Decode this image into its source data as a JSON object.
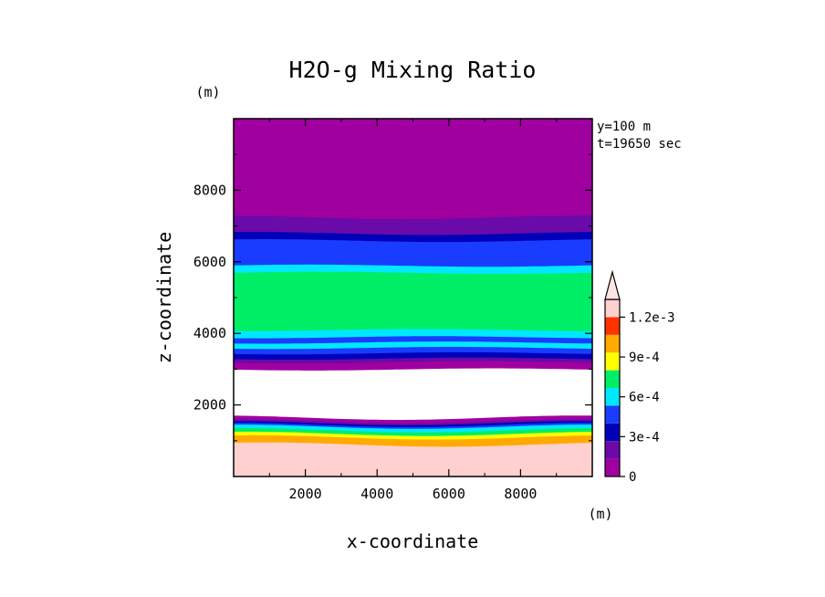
{
  "chart_data": {
    "type": "heatmap",
    "title": "H2O-g Mixing Ratio",
    "xlabel": "x-coordinate",
    "ylabel": "z-coordinate",
    "x_unit": "(m)",
    "y_unit": "(m)",
    "annotations": [
      "y=100 m",
      "t=19650 sec"
    ],
    "xlim": [
      0,
      10000
    ],
    "ylim": [
      0,
      10000
    ],
    "x_ticks": [
      2000,
      4000,
      6000,
      8000
    ],
    "y_ticks": [
      2000,
      4000,
      6000,
      8000
    ],
    "x_tick_labels": [
      "2000",
      "4000",
      "6000",
      "8000"
    ],
    "y_tick_labels": [
      "2000",
      "4000",
      "6000",
      "8000"
    ],
    "colorbar": {
      "levels": [
        0,
        0.00015,
        0.0003,
        0.00045,
        0.0006,
        0.00075,
        0.0009,
        0.00105,
        0.0012
      ],
      "tick_labels": [
        "0",
        "3e-4",
        "6e-4",
        "9e-4",
        "1.2e-3"
      ],
      "tick_values": [
        0,
        0.0003,
        0.0006,
        0.0009,
        0.0012
      ],
      "colors": [
        "#a000a0",
        "#6a0aa8",
        "#0000b8",
        "#1a3cff",
        "#00e8ff",
        "#00ee66",
        "#ffff00",
        "#ffaa00",
        "#ff3200",
        "#ffd0d0"
      ],
      "extend": "max"
    },
    "layers": [
      {
        "bottom": 0,
        "top": 900,
        "value": 0.00125
      },
      {
        "bottom": 900,
        "top": 1100,
        "value": 0.0011
      },
      {
        "bottom": 1100,
        "top": 1200,
        "value": 0.00095
      },
      {
        "bottom": 1200,
        "top": 1300,
        "value": 0.0008
      },
      {
        "bottom": 1300,
        "top": 1400,
        "value": 0.00065
      },
      {
        "bottom": 1400,
        "top": 1450,
        "value": 0.0005
      },
      {
        "bottom": 1450,
        "top": 1500,
        "value": 0.00035
      },
      {
        "bottom": 1500,
        "top": 1550,
        "value": 0.0002
      },
      {
        "bottom": 1550,
        "top": 1650,
        "value": 0.0001
      },
      {
        "bottom": 1650,
        "top": 3000,
        "value": 0
      },
      {
        "bottom": 3000,
        "top": 3200,
        "value": 0.0001
      },
      {
        "bottom": 3200,
        "top": 3300,
        "value": 0.0002
      },
      {
        "bottom": 3300,
        "top": 3450,
        "value": 0.00035
      },
      {
        "bottom": 3450,
        "top": 3600,
        "value": 0.0005
      },
      {
        "bottom": 3600,
        "top": 3750,
        "value": 0.00065
      },
      {
        "bottom": 3750,
        "top": 3900,
        "value": 0.0005
      },
      {
        "bottom": 3900,
        "top": 4100,
        "value": 0.00065
      },
      {
        "bottom": 4100,
        "top": 5700,
        "value": 0.0008
      },
      {
        "bottom": 5700,
        "top": 5900,
        "value": 0.00065
      },
      {
        "bottom": 5900,
        "top": 6600,
        "value": 0.0005
      },
      {
        "bottom": 6600,
        "top": 6800,
        "value": 0.00035
      },
      {
        "bottom": 6800,
        "top": 7250,
        "value": 0.0002
      },
      {
        "bottom": 7250,
        "top": 7900,
        "value": 0.0001
      },
      {
        "bottom": 7900,
        "top": 8700,
        "value": 5e-05
      },
      {
        "bottom": 8700,
        "top": 10000,
        "value": 1e-05
      }
    ]
  }
}
